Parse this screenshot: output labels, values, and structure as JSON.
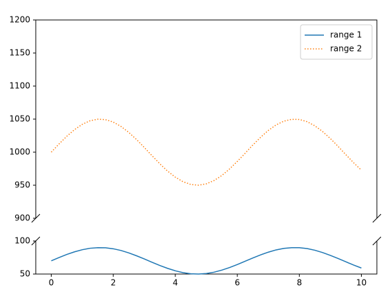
{
  "chart_data": [
    {
      "type": "line",
      "xlim": [
        -0.5,
        10.5
      ],
      "ylim": [
        900,
        1200
      ],
      "yticks": [
        900,
        950,
        1000,
        1050,
        1100,
        1150,
        1200
      ],
      "legend": "upper right",
      "x": [
        0,
        0.25,
        0.5,
        0.75,
        1,
        1.25,
        1.5,
        1.75,
        2,
        2.25,
        2.5,
        2.75,
        3,
        3.25,
        3.5,
        3.75,
        4,
        4.25,
        4.5,
        4.75,
        5,
        5.25,
        5.5,
        5.75,
        6,
        6.25,
        6.5,
        6.75,
        7,
        7.25,
        7.5,
        7.75,
        8,
        8.25,
        8.5,
        8.75,
        9,
        9.25,
        9.5,
        9.75,
        10
      ],
      "series": [
        {
          "name": "range 2",
          "color": "#ff7f0e",
          "dash": "dotted",
          "values": [
            1000,
            1012.4,
            1024,
            1034.1,
            1042.1,
            1047.5,
            1049.9,
            1049.2,
            1045.5,
            1038.9,
            1029.9,
            1019.1,
            1007.1,
            994.6,
            982.5,
            971.4,
            962.2,
            955.3,
            951.1,
            950,
            952.1,
            957.1,
            964.7,
            974.6,
            986,
            998.3,
            1010.8,
            1022.5,
            1032.9,
            1041.2,
            1046.9,
            1049.7,
            1049.5,
            1046.1,
            1039.9,
            1031.2,
            1020.6,
            1008.7,
            996.2,
            984,
            972.8
          ]
        }
      ]
    },
    {
      "type": "line",
      "xlim": [
        -0.5,
        10.5
      ],
      "xticks": [
        0,
        2,
        4,
        6,
        8,
        10
      ],
      "ylim": [
        50,
        100
      ],
      "yticks": [
        50,
        100
      ],
      "x": [
        0,
        0.25,
        0.5,
        0.75,
        1,
        1.25,
        1.5,
        1.75,
        2,
        2.25,
        2.5,
        2.75,
        3,
        3.25,
        3.5,
        3.75,
        4,
        4.25,
        4.5,
        4.75,
        5,
        5.25,
        5.5,
        5.75,
        6,
        6.25,
        6.5,
        6.75,
        7,
        7.25,
        7.5,
        7.75,
        8,
        8.25,
        8.5,
        8.75,
        9,
        9.25,
        9.5,
        9.75,
        10
      ],
      "series": [
        {
          "name": "range 1",
          "color": "#1f77b4",
          "dash": "solid",
          "values": [
            70,
            74.9,
            79.6,
            83.6,
            86.8,
            89,
            89.9,
            89.7,
            88.2,
            85.6,
            82,
            77.6,
            72.8,
            67.8,
            63,
            58.6,
            54.9,
            52.1,
            50.4,
            50,
            50.8,
            52.8,
            55.9,
            59.8,
            64.4,
            69.3,
            74.3,
            79,
            83.1,
            86.5,
            88.8,
            89.9,
            89.8,
            88.5,
            86,
            82.5,
            78.2,
            73.5,
            68.5,
            63.6,
            59.1
          ]
        }
      ]
    }
  ]
}
